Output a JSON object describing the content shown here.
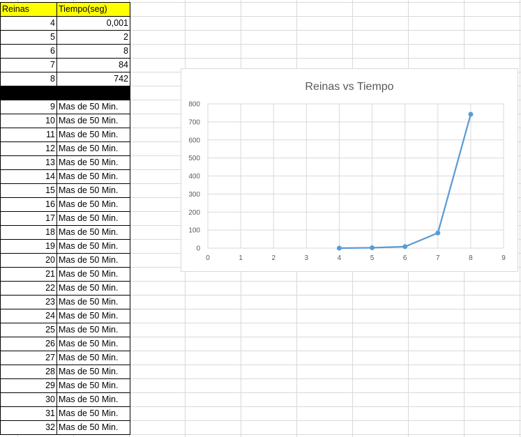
{
  "table": {
    "header": [
      "Reinas",
      "Tiempo(seg)"
    ],
    "rows_numeric": [
      [
        "4",
        "0,001"
      ],
      [
        "5",
        "2"
      ],
      [
        "6",
        "8"
      ],
      [
        "7",
        "84"
      ],
      [
        "8",
        "742"
      ]
    ],
    "rows_text": [
      [
        "9",
        "Mas de 50 Min."
      ],
      [
        "10",
        "Mas de 50 Min."
      ],
      [
        "11",
        "Mas de 50 Min."
      ],
      [
        "12",
        "Mas de 50 Min."
      ],
      [
        "13",
        "Mas de 50 Min."
      ],
      [
        "14",
        "Mas de 50 Min."
      ],
      [
        "15",
        "Mas de 50 Min."
      ],
      [
        "16",
        "Mas de 50 Min."
      ],
      [
        "17",
        "Mas de 50 Min."
      ],
      [
        "18",
        "Mas de 50 Min."
      ],
      [
        "19",
        "Mas de 50 Min."
      ],
      [
        "20",
        "Mas de 50 Min."
      ],
      [
        "21",
        "Mas de 50 Min."
      ],
      [
        "22",
        "Mas de 50 Min."
      ],
      [
        "23",
        "Mas de 50 Min."
      ],
      [
        "24",
        "Mas de 50 Min."
      ],
      [
        "25",
        "Mas de 50 Min."
      ],
      [
        "26",
        "Mas de 50 Min."
      ],
      [
        "27",
        "Mas de 50 Min."
      ],
      [
        "28",
        "Mas de 50 Min."
      ],
      [
        "29",
        "Mas de 50 Min."
      ],
      [
        "30",
        "Mas de 50 Min."
      ],
      [
        "31",
        "Mas de 50 Min."
      ],
      [
        "32",
        "Mas de 50 Min."
      ]
    ]
  },
  "colors": {
    "header_fill": "#ffff00",
    "separator_fill": "#000000",
    "series": "#5b9bd5",
    "gridline": "#d9d9d9"
  },
  "chart_data": {
    "type": "scatter",
    "title": "Reinas vs Tiempo",
    "x_ticks": [
      "0",
      "1",
      "2",
      "3",
      "4",
      "5",
      "6",
      "7",
      "8",
      "9"
    ],
    "y_ticks": [
      "0",
      "100",
      "200",
      "300",
      "400",
      "500",
      "600",
      "700",
      "800"
    ],
    "xlim": [
      0,
      9
    ],
    "ylim": [
      0,
      800
    ],
    "grid": true,
    "line_connected": true,
    "series": [
      {
        "x": [
          4,
          5,
          6,
          7,
          8
        ],
        "y": [
          0.001,
          2,
          8,
          84,
          742
        ]
      }
    ]
  }
}
